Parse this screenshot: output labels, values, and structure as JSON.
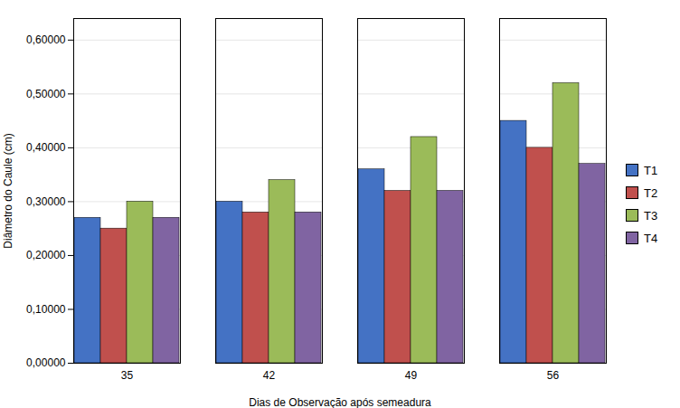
{
  "chart_data": {
    "type": "bar",
    "categories": [
      35,
      42,
      49,
      56
    ],
    "series": [
      {
        "name": "T1",
        "color": "#4472C4",
        "values": [
          0.27,
          0.3,
          0.36,
          0.45
        ]
      },
      {
        "name": "T2",
        "color": "#C0504D",
        "values": [
          0.25,
          0.28,
          0.32,
          0.4
        ]
      },
      {
        "name": "T3",
        "color": "#9BBB59",
        "values": [
          0.3,
          0.34,
          0.42,
          0.52
        ]
      },
      {
        "name": "T4",
        "color": "#8064A2",
        "values": [
          0.27,
          0.28,
          0.32,
          0.37
        ]
      }
    ],
    "xlabel": "Dias de Observação após semeadura",
    "ylabel": "Diâmetro do Caule (cm)",
    "ylim": [
      0.0,
      0.64
    ],
    "yticks": [
      {
        "value": 0.0,
        "label": "0,00000"
      },
      {
        "value": 0.1,
        "label": "0,10000"
      },
      {
        "value": 0.2,
        "label": "0,20000"
      },
      {
        "value": 0.3,
        "label": "0,30000"
      },
      {
        "value": 0.4,
        "label": "0,40000"
      },
      {
        "value": 0.5,
        "label": "0,50000"
      },
      {
        "value": 0.6,
        "label": "0,60000"
      }
    ],
    "grid": true,
    "legend": "right"
  }
}
